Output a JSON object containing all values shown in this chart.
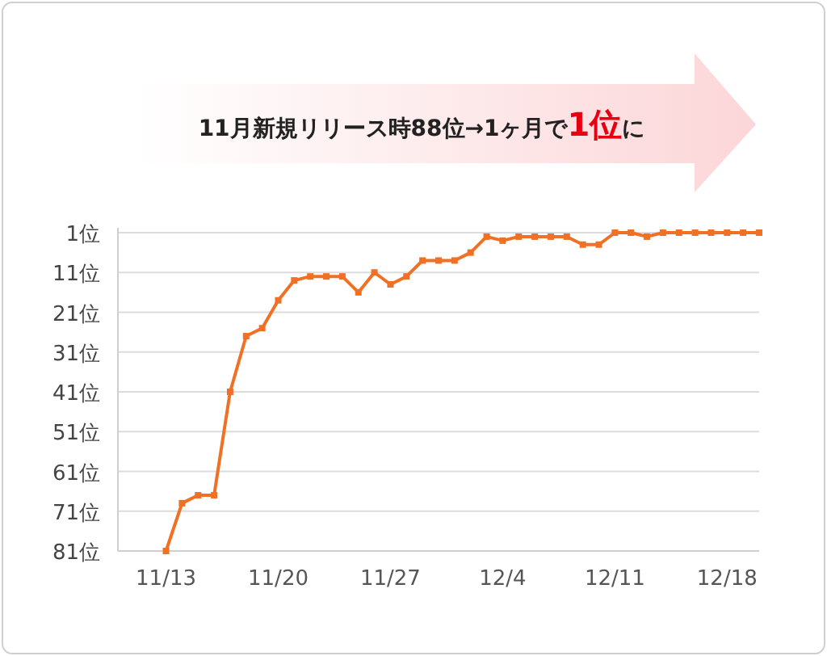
{
  "chart_data": {
    "type": "line",
    "title": "11月新規リリース時88位→1ヶ月で**1位**に",
    "x": [
      "--11-13",
      "--11-14",
      "--11-15",
      "--11-16",
      "--11-17",
      "--11-18",
      "--11-19",
      "--11-20",
      "--11-21",
      "--11-22",
      "--11-23",
      "--11-24",
      "--11-25",
      "--11-26",
      "--11-27",
      "--11-28",
      "--11-29",
      "--11-30",
      "--12-01",
      "--12-02",
      "--12-03",
      "--12-04",
      "--12-05",
      "--12-06",
      "--12-07",
      "--12-08",
      "--12-09",
      "--12-10",
      "--12-11",
      "--12-12",
      "--12-13",
      "--12-14",
      "--12-15",
      "--12-16",
      "--12-17",
      "--12-18",
      "--12-19",
      "--12-20"
    ],
    "series": [
      {
        "color": "#f07025",
        "values": [
          81,
          69,
          67,
          67,
          41,
          27,
          25,
          18,
          13,
          12,
          12,
          12,
          16,
          11,
          14,
          12,
          8,
          8,
          8,
          6,
          2,
          3,
          2,
          2,
          2,
          2,
          4,
          4,
          1,
          1,
          2,
          1,
          1,
          1,
          1,
          1,
          1,
          1
        ]
      }
    ],
    "xlim": [
      "--11-10",
      "--12-20"
    ],
    "xticks": [
      {
        "value": "--11-13",
        "label": "11/13"
      },
      {
        "value": "--11-20",
        "label": "11/20"
      },
      {
        "value": "--11-27",
        "label": "11/27"
      },
      {
        "value": "--12-04",
        "label": "12/4"
      },
      {
        "value": "--12-11",
        "label": "12/11"
      },
      {
        "value": "--12-18",
        "label": "12/18"
      }
    ],
    "ylim": [
      81,
      1
    ],
    "yticks": [
      {
        "value": 1,
        "label": "1位"
      },
      {
        "value": 11,
        "label": "11位"
      },
      {
        "value": 21,
        "label": "21位"
      },
      {
        "value": 31,
        "label": "31位"
      },
      {
        "value": 41,
        "label": "41位"
      },
      {
        "value": 51,
        "label": "51位"
      },
      {
        "value": 61,
        "label": "61位"
      },
      {
        "value": 71,
        "label": "71位"
      },
      {
        "value": 81,
        "label": "81位"
      }
    ],
    "grid": "y",
    "marker": "square",
    "line_style": "solid"
  }
}
